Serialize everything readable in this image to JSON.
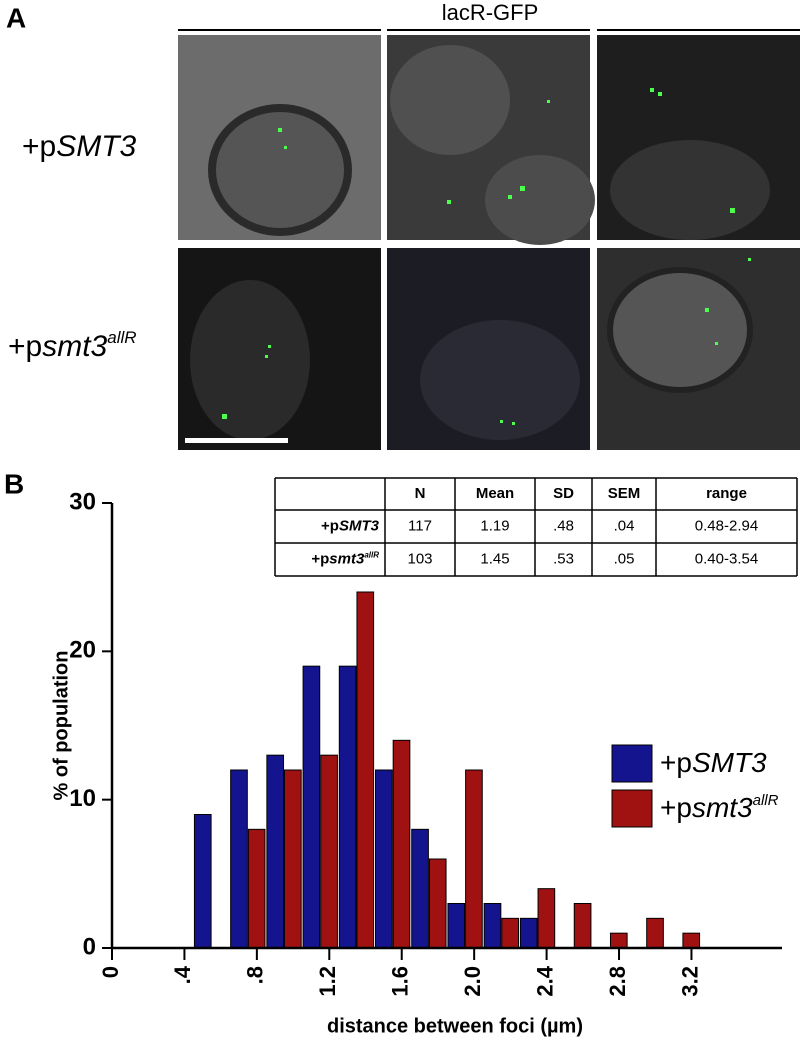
{
  "panel_a": {
    "label": "A",
    "header": "lacR-GFP"
  },
  "panel_b": {
    "label": "B"
  },
  "table": {
    "header": [
      "N",
      "Mean",
      "SD",
      "SEM",
      "range"
    ],
    "rows": [
      [
        "117",
        "1.19",
        ".48",
        ".04",
        "0.48-2.94"
      ],
      [
        "103",
        "1.45",
        ".53",
        ".05",
        "0.40-3.54"
      ]
    ]
  },
  "chart_data": {
    "type": "bar",
    "x_label": "distance between foci (µm)",
    "y_label": "% of population",
    "x": [
      0.55,
      0.75,
      0.95,
      1.15,
      1.35,
      1.55,
      1.75,
      1.95,
      2.15,
      2.35,
      2.55,
      2.75,
      2.95,
      3.15
    ],
    "series": [
      {
        "name": [
          {
            "text": "+p"
          },
          {
            "text": "SMT3",
            "italic": true
          }
        ],
        "color": "#14148f",
        "values": [
          9,
          12,
          13,
          19,
          19,
          12,
          8,
          3,
          3,
          2,
          0,
          0,
          0,
          0
        ]
      },
      {
        "name": [
          {
            "text": "+p"
          },
          {
            "text": "smt3",
            "italic": true
          },
          {
            "text": "allR",
            "italic": true,
            "sup": true
          }
        ],
        "color": "#a01212",
        "values": [
          0,
          8,
          12,
          13,
          24,
          14,
          6,
          12,
          2,
          4,
          3,
          1,
          2,
          1
        ]
      }
    ],
    "xlim": [
      0,
      3.7
    ],
    "xticks": [
      0,
      {
        "value": 0.4,
        "label": ".4"
      },
      {
        "value": 0.8,
        "label": ".8"
      },
      1.2,
      1.6,
      {
        "value": 2,
        "label": "2.0"
      },
      2.4,
      2.8,
      3.2
    ],
    "ylim": [
      0,
      30
    ],
    "yticks": [
      0,
      10,
      20,
      30
    ],
    "legend": "right"
  }
}
